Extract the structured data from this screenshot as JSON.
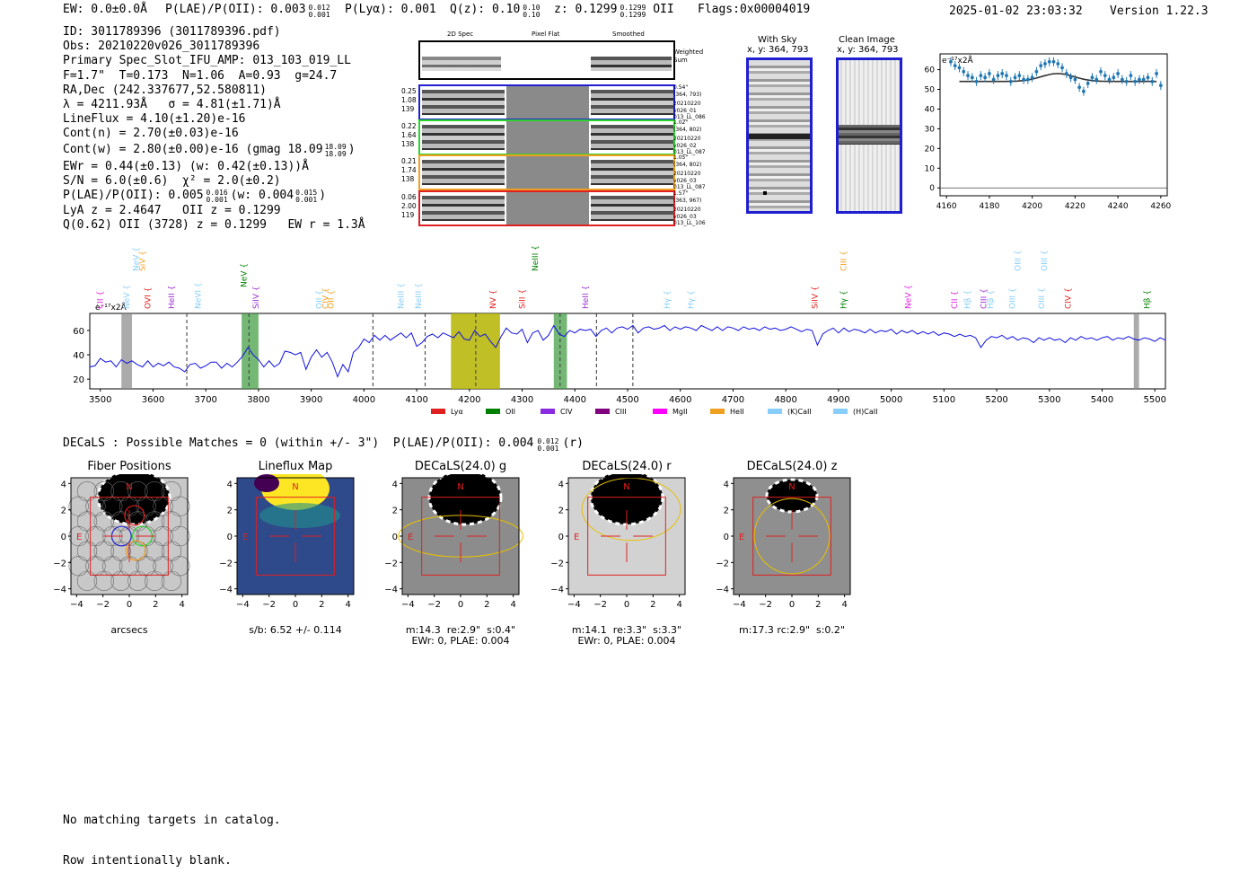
{
  "header": {
    "ew": "EW: 0.0±0.0Å",
    "plae_pre": "P(LAE)/P(OII): 0.003",
    "plae_hi": "0.012",
    "plae_lo": "0.001",
    "plya": "P(Lyα): 0.001",
    "qz_pre": "Q(z): 0.10",
    "qz_hi": "0.10",
    "qz_lo": "0.10",
    "z_pre": "z: 0.1299",
    "z_hi": "0.1299",
    "z_lo": "0.1299",
    "z_post": "OII",
    "flags": "Flags:0x00004019",
    "datetime": "2025-01-02 23:03:32",
    "version": "Version 1.22.3"
  },
  "info": {
    "id": "ID: 3011789396 (3011789396.pdf)",
    "obs": "Obs: 20210220v026_3011789396",
    "primary": "Primary Spec_Slot_IFU_AMP: 013_103_019_LL",
    "fwhm": "F=1.7\"  T=0.173  N=1.06  A=0.93  g=24.7",
    "radec": "RA,Dec (242.337677,52.580811)",
    "lambda": "λ = 4211.93Å   σ = 4.81(±1.71)Å",
    "lineflux": "LineFlux = 4.10(±1.20)e-16",
    "contn": "Cont(n) = 2.70(±0.03)e-16",
    "contw_pre": "Cont(w) = 2.80(±0.00)e-16 (gmag 18.09",
    "contw_hi": "18.09",
    "contw_lo": "18.09",
    "contw_post": ")",
    "ewr": "EWr = 0.44(±0.13) (w: 0.42(±0.13))Å",
    "sn": "S/N = 6.0(±0.6)  χ² = 2.0(±0.2)",
    "plae2_pre": "P(LAE)/P(OII): 0.005",
    "plae2_hi": "0.016",
    "plae2_lo": "0.001",
    "plae2_mid": "(w: 0.004",
    "plae2_whi": "0.015",
    "plae2_wlo": "0.001",
    "plae2_post": ")",
    "lya": "LyA z = 2.4647   OII z = 0.1299",
    "q": "Q(0.62) OII (3728) z = 0.1299   EW r = 1.3Å"
  },
  "cutouts": {
    "col_2d": "2D Spec",
    "col_flat": "Pixel Flat",
    "col_smooth": "Smoothed",
    "weighted": "Weighted\nSum",
    "rows": [
      {
        "color": "#1f1fd0",
        "nums": [
          "0.25",
          "1.08",
          "139"
        ],
        "meta": [
          "0.54\"",
          "(364, 793)",
          "20210220",
          "v026_01",
          "013_LL_086"
        ]
      },
      {
        "color": "#2bd42b",
        "nums": [
          "0.22",
          "1.64",
          "138"
        ],
        "meta": [
          "1.02\"",
          "(364, 802)",
          "20210220",
          "v026_02",
          "013_LL_087"
        ]
      },
      {
        "color": "#f0a020",
        "nums": [
          "0.21",
          "1.74",
          "138"
        ],
        "meta": [
          "1.05\"",
          "(364, 802)",
          "20210220",
          "v026_03",
          "013_LL_087"
        ]
      },
      {
        "color": "#e02020",
        "nums": [
          "0.06",
          "2.00",
          "119"
        ],
        "meta": [
          "1.57\"",
          "(363, 967)",
          "20210220",
          "v026_03",
          "013_LL_106"
        ]
      }
    ]
  },
  "sky": {
    "with_title": "With Sky",
    "with_coords": "x, y: 364, 793",
    "clean_title": "Clean Image",
    "clean_coords": "x, y: 364, 793"
  },
  "zoom_chart": {
    "type": "line",
    "unit_label": "e⁻¹⁷x2Å",
    "xlim": [
      4157,
      4263
    ],
    "ylim": [
      -4,
      68
    ],
    "xticks": [
      4160,
      4180,
      4200,
      4220,
      4240,
      4260
    ],
    "yticks": [
      0,
      10,
      20,
      30,
      40,
      50,
      60
    ],
    "x": [
      4162,
      4164,
      4166,
      4168,
      4170,
      4172,
      4174,
      4176,
      4178,
      4180,
      4182,
      4184,
      4186,
      4188,
      4190,
      4192,
      4194,
      4196,
      4198,
      4200,
      4202,
      4204,
      4206,
      4208,
      4210,
      4212,
      4214,
      4216,
      4218,
      4220,
      4222,
      4224,
      4226,
      4228,
      4230,
      4232,
      4234,
      4236,
      4238,
      4240,
      4242,
      4244,
      4246,
      4248,
      4250,
      4252,
      4254,
      4256,
      4258,
      4260
    ],
    "y": [
      64,
      62,
      61,
      59,
      57,
      56,
      54,
      57,
      56,
      58,
      55,
      57,
      58,
      57,
      54,
      56,
      57,
      55,
      55,
      56,
      59,
      62,
      63,
      64,
      64,
      63,
      61,
      58,
      56,
      55,
      51,
      49,
      53,
      56,
      55,
      59,
      57,
      55,
      56,
      58,
      55,
      54,
      57,
      54,
      55,
      55,
      56,
      54,
      58,
      52
    ],
    "fit_peak": 58,
    "fit_base": 54,
    "fit_center": 4211.9,
    "fit_sigma": 4.81,
    "fit_range": [
      4166,
      4258
    ]
  },
  "spectrum": {
    "type": "line",
    "unit_label": "e⁻¹⁷x2Å",
    "xlim": [
      3480,
      5520
    ],
    "ylim": [
      12,
      74
    ],
    "xticks": [
      3500,
      3600,
      3700,
      3800,
      3900,
      4000,
      4100,
      4200,
      4300,
      4400,
      4500,
      4600,
      4700,
      4800,
      4900,
      5000,
      5100,
      5200,
      5300,
      5400,
      5500
    ],
    "yticks": [
      20,
      40,
      60
    ],
    "points": [
      [
        3480,
        30
      ],
      [
        3490,
        31
      ],
      [
        3500,
        37
      ],
      [
        3510,
        34
      ],
      [
        3520,
        35
      ],
      [
        3530,
        30
      ],
      [
        3540,
        36
      ],
      [
        3550,
        33
      ],
      [
        3560,
        35
      ],
      [
        3570,
        32
      ],
      [
        3580,
        30
      ],
      [
        3590,
        35
      ],
      [
        3600,
        30
      ],
      [
        3610,
        33
      ],
      [
        3620,
        31
      ],
      [
        3630,
        34
      ],
      [
        3640,
        30
      ],
      [
        3650,
        29
      ],
      [
        3660,
        26
      ],
      [
        3670,
        32
      ],
      [
        3680,
        33
      ],
      [
        3690,
        29
      ],
      [
        3700,
        31
      ],
      [
        3710,
        34
      ],
      [
        3720,
        34
      ],
      [
        3730,
        29
      ],
      [
        3740,
        33
      ],
      [
        3750,
        30
      ],
      [
        3760,
        34
      ],
      [
        3770,
        39
      ],
      [
        3780,
        46
      ],
      [
        3790,
        40
      ],
      [
        3800,
        36
      ],
      [
        3810,
        30
      ],
      [
        3820,
        35
      ],
      [
        3830,
        30
      ],
      [
        3840,
        33
      ],
      [
        3850,
        43
      ],
      [
        3860,
        42
      ],
      [
        3870,
        40
      ],
      [
        3880,
        42
      ],
      [
        3890,
        28
      ],
      [
        3900,
        38
      ],
      [
        3910,
        44
      ],
      [
        3920,
        38
      ],
      [
        3930,
        42
      ],
      [
        3940,
        34
      ],
      [
        3950,
        22
      ],
      [
        3960,
        32
      ],
      [
        3970,
        26
      ],
      [
        3980,
        42
      ],
      [
        3990,
        46
      ],
      [
        4000,
        53
      ],
      [
        4010,
        50
      ],
      [
        4020,
        56
      ],
      [
        4030,
        52
      ],
      [
        4040,
        56
      ],
      [
        4050,
        52
      ],
      [
        4060,
        55
      ],
      [
        4070,
        58
      ],
      [
        4080,
        54
      ],
      [
        4090,
        58
      ],
      [
        4100,
        47
      ],
      [
        4110,
        50
      ],
      [
        4120,
        55
      ],
      [
        4130,
        57
      ],
      [
        4140,
        54
      ],
      [
        4150,
        58
      ],
      [
        4160,
        56
      ],
      [
        4170,
        54
      ],
      [
        4180,
        59
      ],
      [
        4190,
        53
      ],
      [
        4200,
        52
      ],
      [
        4210,
        60
      ],
      [
        4220,
        55
      ],
      [
        4230,
        57
      ],
      [
        4240,
        51
      ],
      [
        4250,
        46
      ],
      [
        4260,
        55
      ],
      [
        4270,
        62
      ],
      [
        4280,
        58
      ],
      [
        4290,
        57
      ],
      [
        4300,
        61
      ],
      [
        4310,
        50
      ],
      [
        4320,
        58
      ],
      [
        4330,
        60
      ],
      [
        4340,
        52
      ],
      [
        4350,
        56
      ],
      [
        4360,
        64
      ],
      [
        4370,
        57
      ],
      [
        4380,
        55
      ],
      [
        4390,
        60
      ],
      [
        4400,
        58
      ],
      [
        4410,
        61
      ],
      [
        4420,
        60
      ],
      [
        4430,
        61
      ],
      [
        4440,
        55
      ],
      [
        4450,
        60
      ],
      [
        4460,
        62
      ],
      [
        4470,
        58
      ],
      [
        4480,
        62
      ],
      [
        4490,
        63
      ],
      [
        4500,
        61
      ],
      [
        4510,
        64
      ],
      [
        4520,
        58
      ],
      [
        4530,
        62
      ],
      [
        4540,
        63
      ],
      [
        4550,
        61
      ],
      [
        4560,
        62
      ],
      [
        4570,
        64
      ],
      [
        4580,
        60
      ],
      [
        4590,
        63
      ],
      [
        4600,
        61
      ],
      [
        4610,
        63
      ],
      [
        4620,
        62
      ],
      [
        4630,
        60
      ],
      [
        4640,
        64
      ],
      [
        4650,
        62
      ],
      [
        4660,
        60
      ],
      [
        4670,
        63
      ],
      [
        4680,
        60
      ],
      [
        4690,
        63
      ],
      [
        4700,
        62
      ],
      [
        4710,
        60
      ],
      [
        4720,
        63
      ],
      [
        4730,
        61
      ],
      [
        4740,
        62
      ],
      [
        4750,
        60
      ],
      [
        4760,
        63
      ],
      [
        4770,
        61
      ],
      [
        4780,
        62
      ],
      [
        4790,
        60
      ],
      [
        4800,
        61
      ],
      [
        4810,
        63
      ],
      [
        4820,
        61
      ],
      [
        4830,
        59
      ],
      [
        4840,
        61
      ],
      [
        4850,
        60
      ],
      [
        4860,
        48
      ],
      [
        4870,
        57
      ],
      [
        4880,
        60
      ],
      [
        4890,
        62
      ],
      [
        4900,
        58
      ],
      [
        4910,
        62
      ],
      [
        4920,
        59
      ],
      [
        4930,
        61
      ],
      [
        4940,
        60
      ],
      [
        4950,
        58
      ],
      [
        4960,
        61
      ],
      [
        4970,
        58
      ],
      [
        4980,
        60
      ],
      [
        4990,
        59
      ],
      [
        5000,
        61
      ],
      [
        5010,
        57
      ],
      [
        5020,
        60
      ],
      [
        5030,
        58
      ],
      [
        5040,
        60
      ],
      [
        5050,
        57
      ],
      [
        5060,
        59
      ],
      [
        5070,
        57
      ],
      [
        5080,
        59
      ],
      [
        5090,
        56
      ],
      [
        5100,
        58
      ],
      [
        5110,
        57
      ],
      [
        5120,
        55
      ],
      [
        5130,
        57
      ],
      [
        5140,
        55
      ],
      [
        5150,
        56
      ],
      [
        5160,
        54
      ],
      [
        5170,
        46
      ],
      [
        5180,
        52
      ],
      [
        5190,
        55
      ],
      [
        5200,
        54
      ],
      [
        5210,
        56
      ],
      [
        5220,
        53
      ],
      [
        5230,
        55
      ],
      [
        5240,
        52
      ],
      [
        5250,
        54
      ],
      [
        5260,
        53
      ],
      [
        5270,
        50
      ],
      [
        5280,
        54
      ],
      [
        5290,
        52
      ],
      [
        5300,
        54
      ],
      [
        5310,
        52
      ],
      [
        5320,
        53
      ],
      [
        5330,
        50
      ],
      [
        5340,
        54
      ],
      [
        5350,
        52
      ],
      [
        5360,
        55
      ],
      [
        5370,
        53
      ],
      [
        5380,
        54
      ],
      [
        5390,
        52
      ],
      [
        5400,
        54
      ],
      [
        5410,
        55
      ],
      [
        5420,
        52
      ],
      [
        5430,
        54
      ],
      [
        5440,
        53
      ],
      [
        5450,
        55
      ],
      [
        5460,
        53
      ],
      [
        5470,
        52
      ],
      [
        5480,
        54
      ],
      [
        5490,
        53
      ],
      [
        5500,
        51
      ],
      [
        5510,
        54
      ],
      [
        5520,
        52
      ]
    ],
    "line_markers": [
      {
        "name": "CII",
        "x": 3505,
        "color": "#e020e0",
        "row": 0
      },
      {
        "name": "NeV",
        "x": 3555,
        "color": "#87cefa",
        "row": 0
      },
      {
        "name": "NeV",
        "x": 3573,
        "color": "#87cefa",
        "row": 2
      },
      {
        "name": "SiV",
        "x": 3585,
        "color": "#f0a020",
        "row": 2
      },
      {
        "name": "OVI",
        "x": 3595,
        "color": "#e02020",
        "row": 0
      },
      {
        "name": "HeII",
        "x": 3640,
        "color": "#9b30d0",
        "row": 0
      },
      {
        "name": "NeVI",
        "x": 3690,
        "color": "#87cefa",
        "row": 0
      },
      {
        "name": "NeV",
        "x": 3777,
        "color": "#008000",
        "row": 1
      },
      {
        "name": "SiIV",
        "x": 3800,
        "color": "#9b30d0",
        "row": 0
      },
      {
        "name": "OII",
        "x": 3920,
        "color": "#87cefa",
        "row": 0
      },
      {
        "name": "CIV",
        "x": 3932,
        "color": "#f0a020",
        "row": 0
      },
      {
        "name": "OII",
        "x": 3942,
        "color": "#f0a020",
        "row": 0
      },
      {
        "name": "NeIII",
        "x": 4075,
        "color": "#87cefa",
        "row": 0
      },
      {
        "name": "NeIII",
        "x": 4108,
        "color": "#87cefa",
        "row": 0
      },
      {
        "name": "NV",
        "x": 4250,
        "color": "#e02020",
        "row": 0
      },
      {
        "name": "NeIII",
        "x": 4330,
        "color": "#008000",
        "row": 2
      },
      {
        "name": "SiII",
        "x": 4305,
        "color": "#e02020",
        "row": 0
      },
      {
        "name": "HeII",
        "x": 4425,
        "color": "#9b30d0",
        "row": 0
      },
      {
        "name": "Hγ",
        "x": 4580,
        "color": "#87cefa",
        "row": 0
      },
      {
        "name": "Hγ",
        "x": 4625,
        "color": "#87cefa",
        "row": 0
      },
      {
        "name": "SiIV",
        "x": 4860,
        "color": "#e02020",
        "row": 0
      },
      {
        "name": "Hγ",
        "x": 4915,
        "color": "#008000",
        "row": 0
      },
      {
        "name": "CIII",
        "x": 4915,
        "color": "#f0a020",
        "row": 2
      },
      {
        "name": "NeV",
        "x": 5037,
        "color": "#e020e0",
        "row": 0
      },
      {
        "name": "CII",
        "x": 5125,
        "color": "#e020e0",
        "row": 0
      },
      {
        "name": "Hβ",
        "x": 5150,
        "color": "#87cefa",
        "row": 0
      },
      {
        "name": "CIII",
        "x": 5180,
        "color": "#9b30d0",
        "row": 0
      },
      {
        "name": "Hβ",
        "x": 5193,
        "color": "#87cefa",
        "row": 0
      },
      {
        "name": "OIII",
        "x": 5235,
        "color": "#87cefa",
        "row": 0
      },
      {
        "name": "OIII",
        "x": 5290,
        "color": "#87cefa",
        "row": 0
      },
      {
        "name": "OIII",
        "x": 5245,
        "color": "#87cefa",
        "row": 2
      },
      {
        "name": "OIII",
        "x": 5295,
        "color": "#87cefa",
        "row": 2
      },
      {
        "name": "CIV",
        "x": 5340,
        "color": "#e02020",
        "row": 0
      },
      {
        "name": "Hβ",
        "x": 5490,
        "color": "#008000",
        "row": 0
      }
    ],
    "legend": [
      {
        "label": "Lyα",
        "color": "#e02020"
      },
      {
        "label": "OII",
        "color": "#008000"
      },
      {
        "label": "CIV",
        "color": "#8a2be2"
      },
      {
        "label": "CIII",
        "color": "#800080"
      },
      {
        "label": "MgII",
        "color": "#ff00ff"
      },
      {
        "label": "HeII",
        "color": "#f0a020"
      },
      {
        "label": "(K)CaII",
        "color": "#87cefa"
      },
      {
        "label": "(H)CaII",
        "color": "#87cefa"
      }
    ]
  },
  "decals": {
    "header_pre": "DECaLS : Possible Matches = 0 (within +/- 3\")  P(LAE)/P(OII): 0.004",
    "header_hi": "0.012",
    "header_lo": "0.001",
    "header_post": "(r)",
    "panels": [
      {
        "title": "Fiber Positions",
        "caption": "arcsecs"
      },
      {
        "title": "Lineflux Map",
        "caption": "s/b: 6.52 +/- 0.114"
      },
      {
        "title": "DECaLS(24.0) g",
        "caption": "m:14.3  re:2.9\"  s:0.4\"\nEWr: 0, PLAE: 0.004"
      },
      {
        "title": "DECaLS(24.0) r",
        "caption": "m:14.1  re:3.3\"  s:3.3\"\nEWr: 0, PLAE: 0.004"
      },
      {
        "title": "DECaLS(24.0) z",
        "caption": "m:17.3 rc:2.9\"  s:0.2\""
      }
    ],
    "ticks": [
      "−4",
      "−2",
      "0",
      "2",
      "4"
    ],
    "north": "N",
    "east": "E"
  },
  "footer": {
    "line1": "No matching targets in catalog.",
    "line2": "Row intentionally blank."
  }
}
